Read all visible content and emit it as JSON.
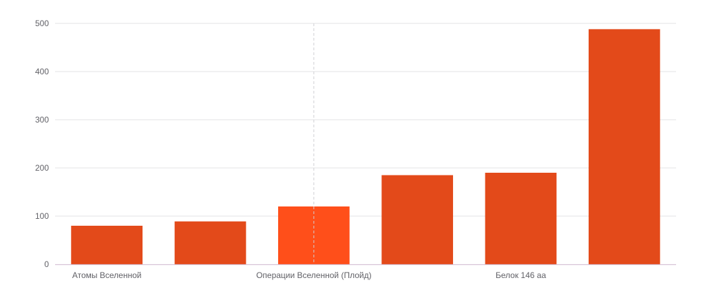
{
  "chart_data": {
    "type": "bar",
    "categories": [
      "Атомы Вселенной",
      "",
      "Операции Вселенной (Плойд)",
      "",
      "Белок 146 аа",
      ""
    ],
    "values": [
      80,
      89,
      120,
      185,
      190,
      488
    ],
    "ylim": [
      0,
      500
    ],
    "yticks": [
      0,
      100,
      200,
      300,
      400,
      500
    ],
    "grid": true,
    "highlight_index": 2,
    "colors": {
      "bar": "#E34A1A",
      "bar_highlight": "#FF4F1A",
      "grid": "#E3E3E6",
      "axis": "#D6C3D6",
      "tick_text": "#606066",
      "hover_line": "#CFCFD4"
    }
  }
}
